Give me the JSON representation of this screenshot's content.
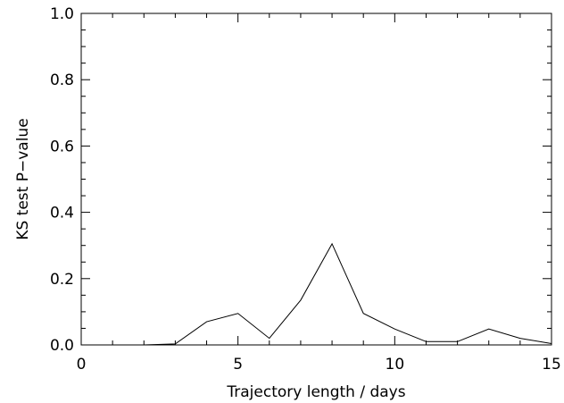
{
  "chart_data": {
    "type": "line",
    "title": "",
    "xlabel": "Trajectory length / days",
    "ylabel": "KS test P−value",
    "xlim": [
      0,
      15
    ],
    "ylim": [
      0,
      1.0
    ],
    "x_ticks": [
      0,
      5,
      10,
      15
    ],
    "x_tick_labels": [
      "0",
      "5",
      "10",
      "15"
    ],
    "y_ticks": [
      0,
      0.2,
      0.4,
      0.6,
      0.8,
      1.0
    ],
    "y_tick_labels": [
      "0.0",
      "0.2",
      "0.4",
      "0.6",
      "0.8",
      "1.0"
    ],
    "grid": false,
    "series": [
      {
        "x": [
          1,
          2,
          3,
          4,
          5,
          6,
          7,
          8,
          9,
          10,
          11,
          12,
          13,
          14,
          15
        ],
        "y": [
          0.0,
          0.0,
          0.003,
          0.07,
          0.095,
          0.02,
          0.135,
          0.305,
          0.095,
          0.048,
          0.01,
          0.01,
          0.048,
          0.02,
          0.004
        ]
      }
    ],
    "color": "#000000"
  }
}
